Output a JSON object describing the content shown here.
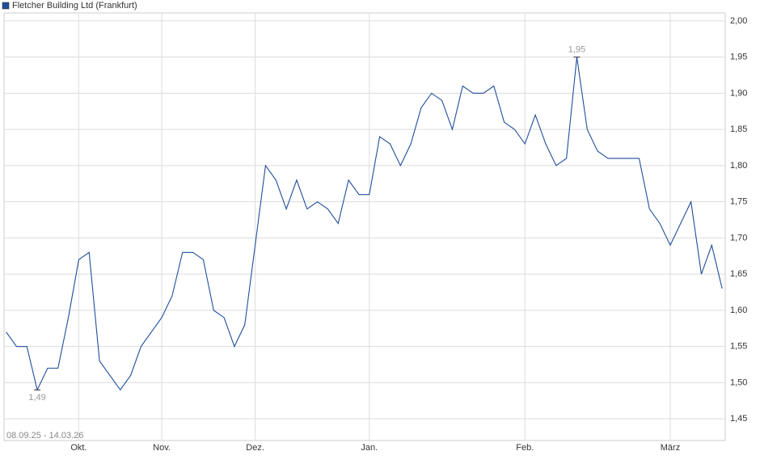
{
  "chart_data": {
    "type": "line",
    "title": "Fletcher Building Ltd (Frankfurt)",
    "subtitle": "08.09.25 - 14.03.26",
    "categories": [
      null,
      null,
      null,
      null,
      null,
      null,
      null,
      null,
      null,
      null,
      null,
      null,
      null,
      null,
      null,
      null,
      null,
      null,
      null,
      null,
      null,
      null,
      null,
      null,
      null,
      null,
      null,
      null,
      null,
      null,
      null,
      null,
      null,
      null,
      null,
      null,
      null,
      null,
      null,
      null,
      null,
      null,
      null,
      null,
      null,
      null,
      null,
      null,
      null,
      null,
      null,
      null,
      null,
      null,
      null,
      null,
      null,
      null,
      null,
      null,
      null,
      null,
      null,
      null,
      null,
      null,
      null,
      null,
      null,
      null
    ],
    "series": [
      {
        "name": "Fletcher Building Ltd (Frankfurt)",
        "color": "#1f4e9c",
        "values": [
          1.57,
          1.55,
          1.55,
          1.49,
          1.52,
          1.52,
          1.59,
          1.67,
          1.68,
          1.53,
          1.51,
          1.49,
          1.51,
          1.55,
          1.57,
          1.59,
          1.62,
          1.68,
          1.68,
          1.67,
          1.6,
          1.59,
          1.55,
          1.58,
          1.69,
          1.8,
          1.78,
          1.74,
          1.78,
          1.74,
          1.75,
          1.74,
          1.72,
          1.78,
          1.76,
          1.76,
          1.84,
          1.83,
          1.8,
          1.83,
          1.88,
          1.9,
          1.89,
          1.85,
          1.91,
          1.9,
          1.9,
          1.91,
          1.86,
          1.85,
          1.83,
          1.87,
          1.83,
          1.8,
          1.81,
          1.95,
          1.85,
          1.82,
          1.81,
          1.81,
          1.81,
          1.81,
          1.74,
          1.72,
          1.69,
          1.72,
          1.75,
          1.65,
          1.69,
          1.63
        ]
      }
    ],
    "high_label": "1,95",
    "low_label": "1,49",
    "xlim": [
      -0.2,
      69.3
    ],
    "xticks": [
      {
        "value": 7,
        "label": "Okt."
      },
      {
        "value": 15,
        "label": "Nov."
      },
      {
        "value": 24,
        "label": "Dez."
      },
      {
        "value": 35,
        "label": "Jan."
      },
      {
        "value": 50,
        "label": "Feb."
      },
      {
        "value": 64,
        "label": "März"
      }
    ],
    "ylim": [
      1.42,
      2.011
    ],
    "yticks": [
      {
        "value": 1.45,
        "label": "1,45"
      },
      {
        "value": 1.5,
        "label": "1,50"
      },
      {
        "value": 1.55,
        "label": "1,55"
      },
      {
        "value": 1.6,
        "label": "1,60"
      },
      {
        "value": 1.65,
        "label": "1,65"
      },
      {
        "value": 1.7,
        "label": "1,70"
      },
      {
        "value": 1.75,
        "label": "1,75"
      },
      {
        "value": 1.8,
        "label": "1,80"
      },
      {
        "value": 1.85,
        "label": "1,85"
      },
      {
        "value": 1.9,
        "label": "1,90"
      },
      {
        "value": 1.95,
        "label": "1,95"
      },
      {
        "value": 2,
        "label": "2,00"
      }
    ],
    "grid": true
  }
}
